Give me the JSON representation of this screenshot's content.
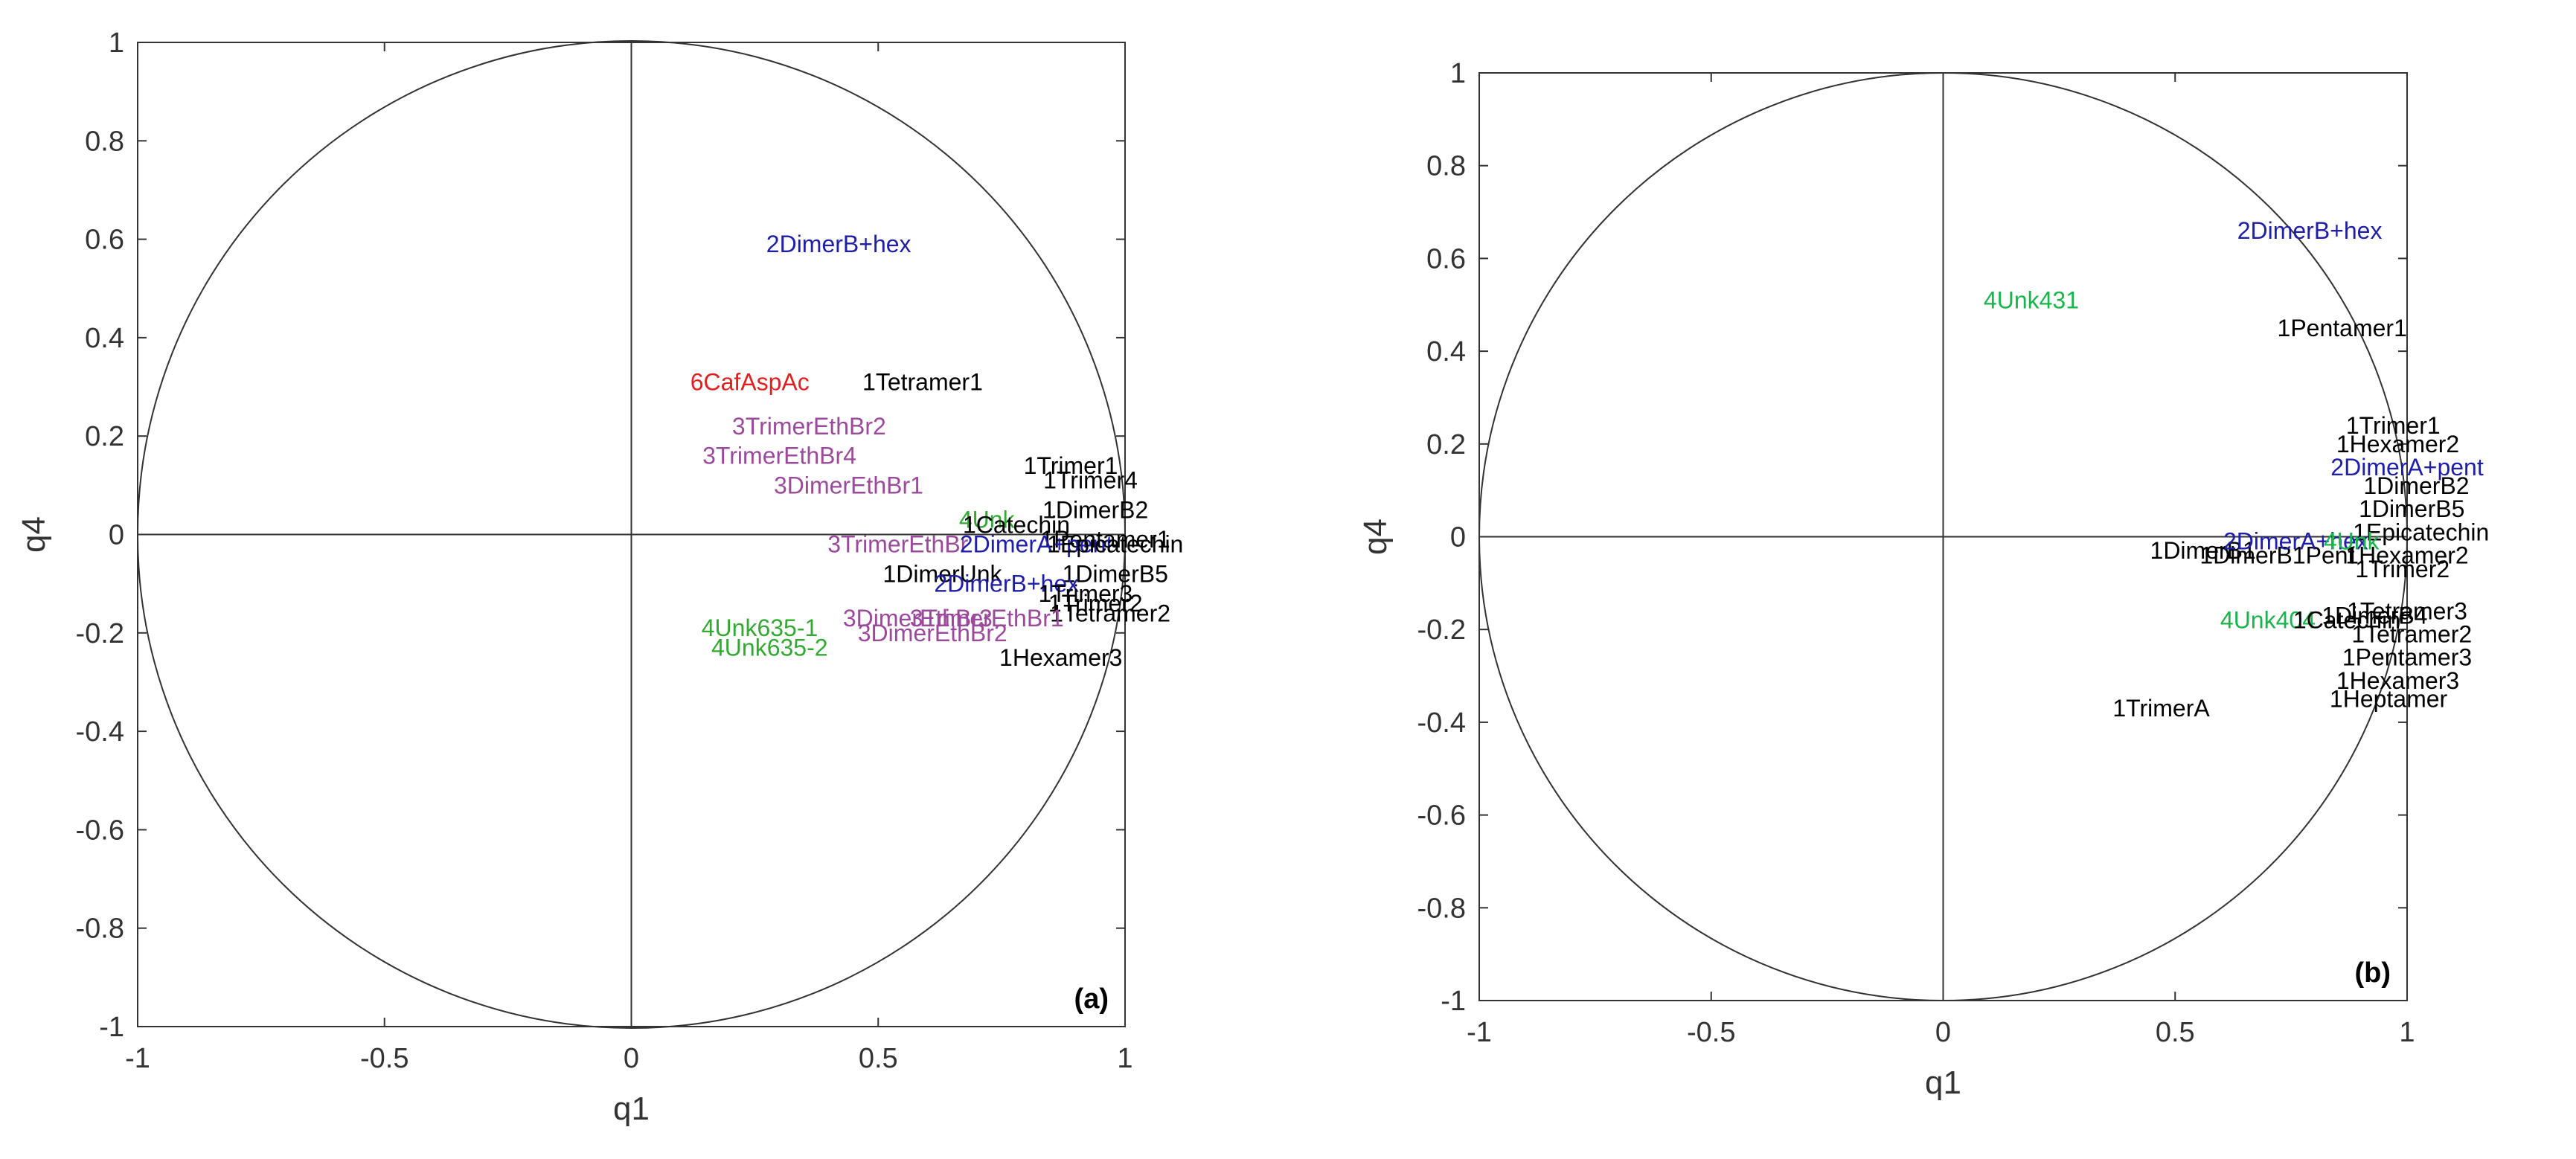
{
  "chart_data": [
    {
      "type": "scatter",
      "panel_label": "(a)",
      "xlabel": "q1",
      "ylabel": "q4",
      "xlim": [
        -1,
        1
      ],
      "ylim": [
        -1,
        1
      ],
      "xticks": [
        "-1",
        "-0.5",
        "0",
        "0.5",
        "1"
      ],
      "yticks": [
        "-1",
        "-0.8",
        "-0.6",
        "-0.4",
        "-0.2",
        "0",
        "0.2",
        "0.4",
        "0.6",
        "0.8",
        "1"
      ],
      "unit_circle": true,
      "grid": false,
      "colors": {
        "1": "#000000",
        "2": "#1e1ea8",
        "3": "#9b4a9b",
        "4": "#33a833",
        "6": "#e02020"
      },
      "points": [
        {
          "label": "2DimerB+hex",
          "x": 0.42,
          "y": 0.59,
          "group": "2"
        },
        {
          "label": "6CafAspAc",
          "x": 0.24,
          "y": 0.31,
          "group": "6"
        },
        {
          "label": "1Tetramer1",
          "x": 0.59,
          "y": 0.31,
          "group": "1"
        },
        {
          "label": "3TrimerEthBr2",
          "x": 0.36,
          "y": 0.22,
          "group": "3"
        },
        {
          "label": "3TrimerEthBr4",
          "x": 0.3,
          "y": 0.16,
          "group": "3"
        },
        {
          "label": "3DimerEthBr1",
          "x": 0.44,
          "y": 0.1,
          "group": "3"
        },
        {
          "label": "1Trimer1",
          "x": 0.89,
          "y": 0.14,
          "group": "1"
        },
        {
          "label": "1Trimer4",
          "x": 0.93,
          "y": 0.11,
          "group": "1"
        },
        {
          "label": "1DimerB2",
          "x": 0.94,
          "y": 0.05,
          "group": "1"
        },
        {
          "label": "4Unk",
          "x": 0.72,
          "y": 0.03,
          "group": "4"
        },
        {
          "label": "1Catechin",
          "x": 0.78,
          "y": 0.02,
          "group": "1"
        },
        {
          "label": "1Pentamer1",
          "x": 0.96,
          "y": -0.01,
          "group": "1"
        },
        {
          "label": "3TrimerEthBr",
          "x": 0.54,
          "y": -0.02,
          "group": "3"
        },
        {
          "label": "2DimerA+pent",
          "x": 0.82,
          "y": -0.02,
          "group": "2"
        },
        {
          "label": "1Epicatechin",
          "x": 0.98,
          "y": -0.02,
          "group": "1"
        },
        {
          "label": "1DimerUnk",
          "x": 0.63,
          "y": -0.08,
          "group": "1"
        },
        {
          "label": "1DimerB5",
          "x": 0.98,
          "y": -0.08,
          "group": "1"
        },
        {
          "label": "2DimerB+hex",
          "x": 0.76,
          "y": -0.1,
          "group": "2"
        },
        {
          "label": "1Trimer3",
          "x": 0.92,
          "y": -0.12,
          "group": "1"
        },
        {
          "label": "1Trimer2",
          "x": 0.94,
          "y": -0.14,
          "group": "1"
        },
        {
          "label": "1Tetramer2",
          "x": 0.97,
          "y": -0.16,
          "group": "1"
        },
        {
          "label": "3DimerEthBr3",
          "x": 0.58,
          "y": -0.17,
          "group": "3"
        },
        {
          "label": "3TrimerEthBr1",
          "x": 0.72,
          "y": -0.17,
          "group": "3"
        },
        {
          "label": "3DimerEthBr2",
          "x": 0.61,
          "y": -0.2,
          "group": "3"
        },
        {
          "label": "4Unk635-1",
          "x": 0.26,
          "y": -0.19,
          "group": "4"
        },
        {
          "label": "4Unk635-2",
          "x": 0.28,
          "y": -0.23,
          "group": "4"
        },
        {
          "label": "1Hexamer3",
          "x": 0.87,
          "y": -0.25,
          "group": "1"
        }
      ]
    },
    {
      "type": "scatter",
      "panel_label": "(b)",
      "xlabel": "q1",
      "ylabel": "q4",
      "xlim": [
        -1,
        1
      ],
      "ylim": [
        -1,
        1
      ],
      "xticks": [
        "-1",
        "-0.5",
        "0",
        "0.5",
        "1"
      ],
      "yticks": [
        "-1",
        "-0.8",
        "-0.6",
        "-0.4",
        "-0.2",
        "0",
        "0.2",
        "0.4",
        "0.6",
        "0.8",
        "1"
      ],
      "unit_circle": true,
      "grid": false,
      "colors": {
        "1": "#000000",
        "2": "#1e1ea8",
        "3": "#9b4a9b",
        "4": "#19b54a",
        "6": "#e02020"
      },
      "points": [
        {
          "label": "2DimerB+hex",
          "x": 0.79,
          "y": 0.66,
          "group": "2"
        },
        {
          "label": "4Unk431",
          "x": 0.19,
          "y": 0.51,
          "group": "4"
        },
        {
          "label": "1Pentamer1",
          "x": 0.86,
          "y": 0.45,
          "group": "1"
        },
        {
          "label": "1Trimer1",
          "x": 0.97,
          "y": 0.24,
          "group": "1"
        },
        {
          "label": "1Hexamer2",
          "x": 0.98,
          "y": 0.2,
          "group": "1"
        },
        {
          "label": "2DimerA+pent",
          "x": 1.0,
          "y": 0.15,
          "group": "2"
        },
        {
          "label": "1DimerB2",
          "x": 1.02,
          "y": 0.11,
          "group": "1"
        },
        {
          "label": "1DimerB5",
          "x": 1.01,
          "y": 0.06,
          "group": "1"
        },
        {
          "label": "1Epicatechin",
          "x": 1.03,
          "y": 0.01,
          "group": "1"
        },
        {
          "label": "1DimerB1",
          "x": 0.56,
          "y": -0.03,
          "group": "1"
        },
        {
          "label": "1DimerB1Pent",
          "x": 0.72,
          "y": -0.04,
          "group": "1"
        },
        {
          "label": "2DimerA+hex",
          "x": 0.76,
          "y": -0.01,
          "group": "2"
        },
        {
          "label": "4Unk",
          "x": 0.88,
          "y": -0.01,
          "group": "4"
        },
        {
          "label": "1Hexamer2",
          "x": 1.0,
          "y": -0.04,
          "group": "1"
        },
        {
          "label": "1Trimer2",
          "x": 0.99,
          "y": -0.07,
          "group": "1"
        },
        {
          "label": "4Unk404",
          "x": 0.7,
          "y": -0.18,
          "group": "4"
        },
        {
          "label": "1Catechin",
          "x": 0.87,
          "y": -0.18,
          "group": "1"
        },
        {
          "label": "1DimerB4",
          "x": 0.93,
          "y": -0.17,
          "group": "1"
        },
        {
          "label": "1Tetramer3",
          "x": 1.0,
          "y": -0.16,
          "group": "1"
        },
        {
          "label": "1Tetramer2",
          "x": 1.01,
          "y": -0.21,
          "group": "1"
        },
        {
          "label": "1Pentamer3",
          "x": 1.0,
          "y": -0.26,
          "group": "1"
        },
        {
          "label": "1Hexamer3",
          "x": 0.98,
          "y": -0.31,
          "group": "1"
        },
        {
          "label": "1Heptamer",
          "x": 0.96,
          "y": -0.35,
          "group": "1"
        },
        {
          "label": "1TrimerA",
          "x": 0.47,
          "y": -0.37,
          "group": "1"
        }
      ]
    }
  ]
}
